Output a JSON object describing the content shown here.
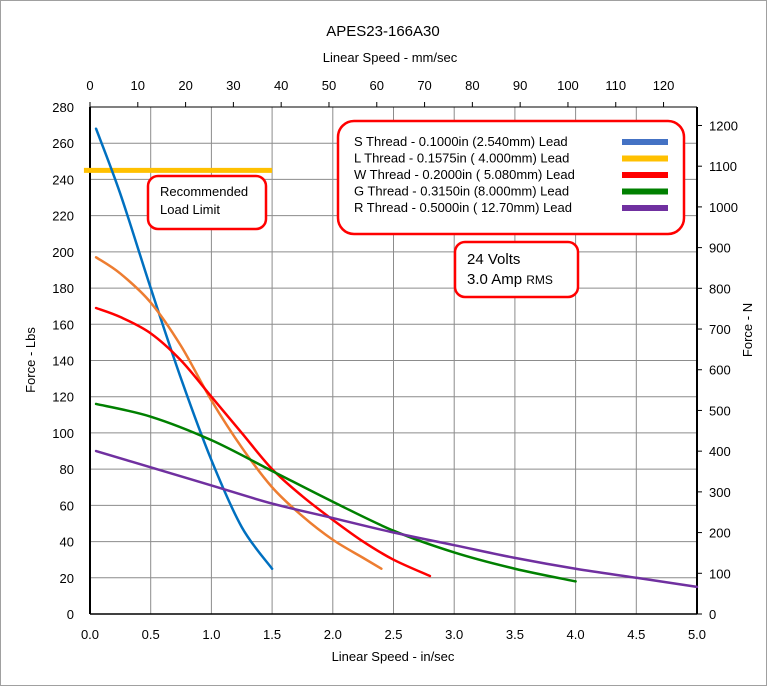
{
  "chart_data": {
    "type": "line",
    "title": "APES23-166A30",
    "xlabel": "Linear Speed - in/sec",
    "x2label": "Linear Speed - mm/sec",
    "ylabel": "Force - Lbs",
    "y2label": "Force - N",
    "xlim": [
      0,
      5.0
    ],
    "ylim": [
      0,
      280
    ],
    "x2lim": [
      0,
      127
    ],
    "y2lim": [
      0,
      1245.4
    ],
    "xticks": [
      "0.0",
      "0.5",
      "1.0",
      "1.5",
      "2.0",
      "2.5",
      "3.0",
      "3.5",
      "4.0",
      "4.5",
      "5.0"
    ],
    "yticks": [
      "0",
      "20",
      "40",
      "60",
      "80",
      "100",
      "120",
      "140",
      "160",
      "180",
      "200",
      "220",
      "240",
      "260",
      "280"
    ],
    "x2ticks": [
      "0",
      "10",
      "20",
      "30",
      "40",
      "50",
      "60",
      "70",
      "80",
      "90",
      "100",
      "110",
      "120"
    ],
    "y2ticks": [
      "0",
      "100",
      "200",
      "300",
      "400",
      "500",
      "600",
      "700",
      "800",
      "900",
      "1000",
      "1100",
      "1200"
    ],
    "grid": true,
    "legend_placement": "top-right",
    "legend": [
      {
        "label": "S Thread -  0.1000in (2.540mm) Lead",
        "color": "#4472C4"
      },
      {
        "label": "L Thread -  0.1575in ( 4.000mm) Lead",
        "color": "#FFC000"
      },
      {
        "label": "W Thread - 0.2000in ( 5.080mm) Lead",
        "color": "#FF0000"
      },
      {
        "label": "G Thread - 0.3150in (8.000mm) Lead",
        "color": "#008000"
      },
      {
        "label": "R Thread - 0.5000in ( 12.70mm) Lead",
        "color": "#7030A0"
      }
    ],
    "series": [
      {
        "color": "#0070C0",
        "x": [
          0.05,
          0.25,
          0.5,
          0.75,
          1.0,
          1.25,
          1.5
        ],
        "y": [
          268,
          232,
          180,
          130,
          85,
          48,
          25
        ]
      },
      {
        "color": "#ED7D31",
        "x": [
          0.05,
          0.25,
          0.5,
          0.75,
          1.0,
          1.25,
          1.5,
          1.75,
          2.0,
          2.25,
          2.4
        ],
        "y": [
          197,
          188,
          172,
          148,
          118,
          92,
          70,
          54,
          41,
          31,
          25
        ]
      },
      {
        "color": "#FF0000",
        "x": [
          0.05,
          0.25,
          0.5,
          0.75,
          1.0,
          1.25,
          1.5,
          1.75,
          2.0,
          2.25,
          2.5,
          2.8
        ],
        "y": [
          169,
          164,
          155,
          140,
          120,
          100,
          80,
          65,
          52,
          40,
          30,
          21
        ]
      },
      {
        "color": "#008000",
        "x": [
          0.05,
          0.5,
          1.0,
          1.5,
          2.0,
          2.5,
          3.0,
          3.5,
          4.0
        ],
        "y": [
          116,
          109,
          96,
          79,
          62,
          46,
          34,
          25,
          18
        ]
      },
      {
        "color": "#7030A0",
        "x": [
          0.05,
          0.5,
          1.0,
          1.5,
          2.0,
          2.5,
          3.0,
          3.5,
          4.0,
          4.5,
          5.0
        ],
        "y": [
          90,
          81,
          71,
          61,
          53,
          45,
          38,
          31,
          25,
          20,
          15
        ]
      }
    ],
    "load_limit": {
      "value": 245,
      "x": [
        -0.05,
        1.5
      ],
      "color": "#FFC000",
      "label_line1": "Recommended",
      "label_line2": "Load Limit"
    },
    "annotation": {
      "line1": "24 Volts",
      "line2_main": "3.0 Amp ",
      "line2_small": "RMS"
    }
  }
}
